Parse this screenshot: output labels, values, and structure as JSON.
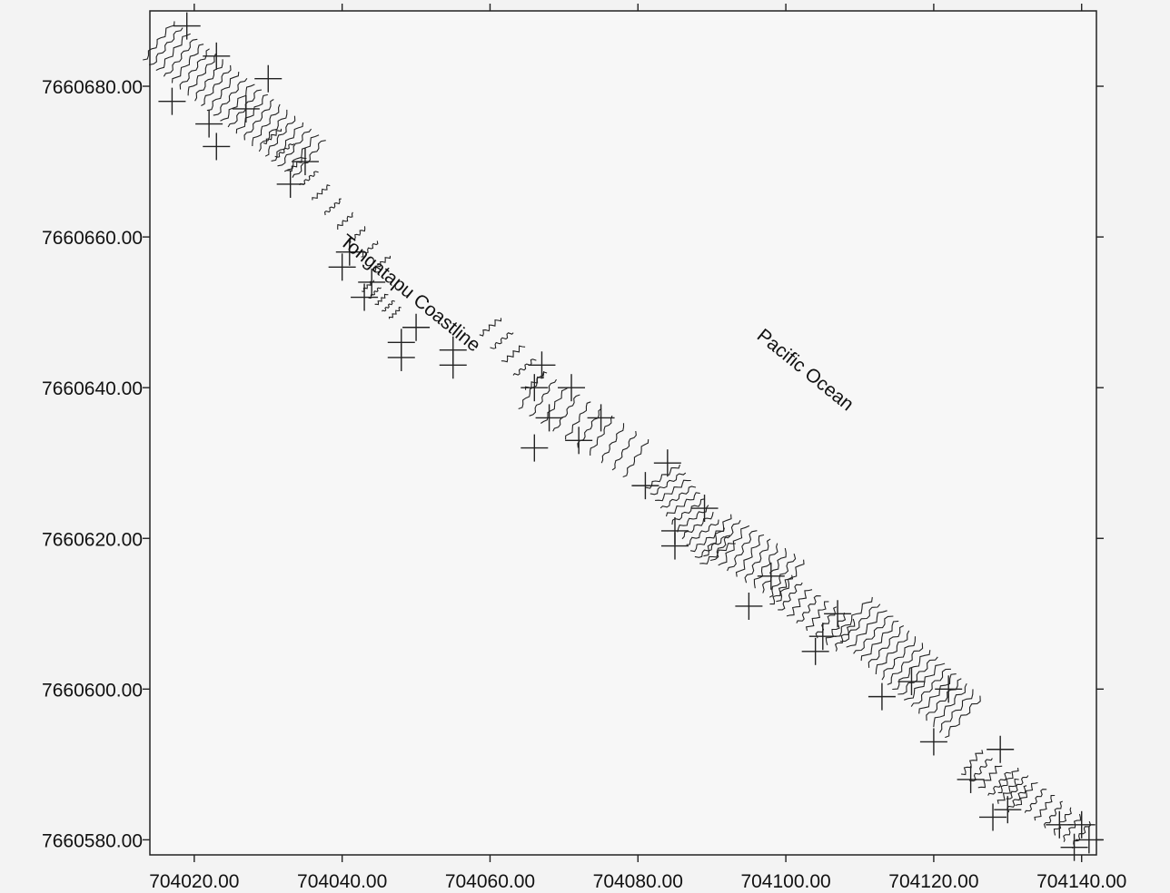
{
  "map": {
    "x_axis": {
      "min": 704014,
      "max": 704142,
      "ticks": [
        {
          "value": 704020,
          "label": "704020.00"
        },
        {
          "value": 704040,
          "label": "704040.00"
        },
        {
          "value": 704060,
          "label": "704060.00"
        },
        {
          "value": 704080,
          "label": "704080.00"
        },
        {
          "value": 704100,
          "label": "704100.00"
        },
        {
          "value": 704120,
          "label": "704120.00"
        },
        {
          "value": 704140,
          "label": "704140.00"
        }
      ]
    },
    "y_axis": {
      "min": 7660578,
      "max": 7660690,
      "ticks": [
        {
          "value": 7660680,
          "label": "7660680.00"
        },
        {
          "value": 7660660,
          "label": "7660660.00"
        },
        {
          "value": 7660640,
          "label": "7660640.00"
        },
        {
          "value": 7660620,
          "label": "7660620.00"
        },
        {
          "value": 7660600,
          "label": "7660600.00"
        },
        {
          "value": 7660580,
          "label": "7660580.00"
        }
      ]
    },
    "labels": {
      "coastline": "Tongatapu Coastline",
      "ocean": "Pacific Ocean"
    },
    "survey_points": [
      [
        704019,
        7660688
      ],
      [
        704023,
        7660684
      ],
      [
        704030,
        7660681
      ],
      [
        704017,
        7660678
      ],
      [
        704022,
        7660675
      ],
      [
        704027,
        7660677
      ],
      [
        704023,
        7660672
      ],
      [
        704035,
        7660670
      ],
      [
        704033,
        7660667
      ],
      [
        704041,
        7660658
      ],
      [
        704040,
        7660656
      ],
      [
        704043,
        7660652
      ],
      [
        704044,
        7660654
      ],
      [
        704048,
        7660646
      ],
      [
        704048,
        7660644
      ],
      [
        704050,
        7660648
      ],
      [
        704055,
        7660645
      ],
      [
        704055,
        7660643
      ],
      [
        704066,
        7660640
      ],
      [
        704067,
        7660643
      ],
      [
        704071,
        7660640
      ],
      [
        704068,
        7660636
      ],
      [
        704075,
        7660636
      ],
      [
        704072,
        7660633
      ],
      [
        704066,
        7660632
      ],
      [
        704081,
        7660627
      ],
      [
        704084,
        7660630
      ],
      [
        704089,
        7660624
      ],
      [
        704085,
        7660621
      ],
      [
        704085,
        7660619
      ],
      [
        704098,
        7660615
      ],
      [
        704095,
        7660611
      ],
      [
        704104,
        7660605
      ],
      [
        704105,
        7660607
      ],
      [
        704107,
        7660610
      ],
      [
        704113,
        7660599
      ],
      [
        704117,
        7660601
      ],
      [
        704120,
        7660593
      ],
      [
        704122,
        7660600
      ],
      [
        704125,
        7660588
      ],
      [
        704129,
        7660592
      ],
      [
        704130,
        7660584
      ],
      [
        704128,
        7660583
      ],
      [
        704137,
        7660582
      ],
      [
        704140,
        7660582
      ],
      [
        704139,
        7660579
      ],
      [
        704141,
        7660580
      ]
    ]
  }
}
